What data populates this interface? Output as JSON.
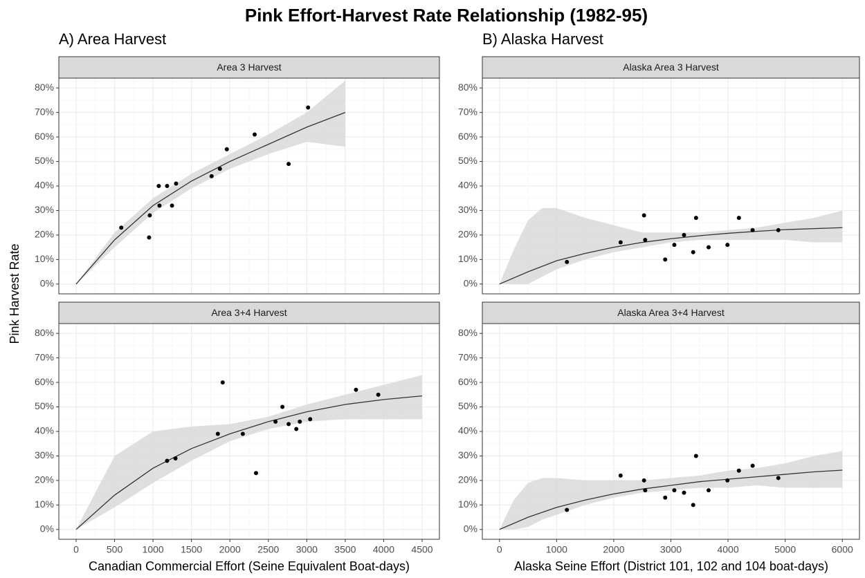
{
  "title": "Pink Effort-Harvest Rate Relationship (1982-95)",
  "y_label": "Pink Harvest Rate",
  "groups": [
    {
      "title": "A) Area Harvest",
      "x_label": "Canadian Commercial Effort (Seine Equivalent Boat-days)"
    },
    {
      "title": "B) Alaska Harvest",
      "x_label": "Alaska Seine Effort (District 101, 102 and 104 boat-days)"
    }
  ],
  "chart_data": [
    {
      "type": "scatter",
      "title": "Area 3 Harvest",
      "x": [
        587,
        958,
        949,
        1075,
        1084,
        1183,
        1247,
        1300,
        1762,
        1870,
        1960,
        2322,
        2764,
        3017
      ],
      "values": [
        23,
        28,
        19,
        40,
        32,
        40,
        32,
        41,
        44,
        47,
        55,
        61,
        49,
        72
      ],
      "fit": {
        "x": [
          0,
          500,
          1000,
          1500,
          2000,
          2500,
          3000,
          3500
        ],
        "values": [
          0,
          18,
          32,
          42,
          50,
          57,
          64,
          70
        ]
      },
      "band": {
        "x": [
          0,
          500,
          1000,
          1500,
          2000,
          2500,
          3000,
          3500
        ],
        "lower": [
          0,
          15,
          29,
          39,
          47,
          53,
          58,
          56
        ],
        "upper": [
          0,
          21,
          35,
          45,
          53,
          61,
          70,
          83
        ]
      },
      "xlim": [
        -225,
        4725
      ],
      "xticks": [
        0,
        500,
        1000,
        1500,
        2000,
        2500,
        3000,
        3500,
        4000,
        4500
      ],
      "show_x_tick_labels": false,
      "ylim": [
        -4,
        84
      ],
      "yticks": [
        {
          "value": 0,
          "label": "0%"
        },
        {
          "value": 10,
          "label": "10%"
        },
        {
          "value": 20,
          "label": "20%"
        },
        {
          "value": 30,
          "label": "30%"
        },
        {
          "value": 40,
          "label": "40%"
        },
        {
          "value": 50,
          "label": "50%"
        },
        {
          "value": 60,
          "label": "60%"
        },
        {
          "value": 70,
          "label": "70%"
        },
        {
          "value": 80,
          "label": "80%"
        }
      ],
      "grid": true,
      "color": "#000000"
    },
    {
      "type": "scatter",
      "title": "Area 3+4 Harvest",
      "x": [
        1183,
        1292,
        1843,
        1906,
        2168,
        2340,
        2593,
        2683,
        2764,
        2864,
        2909,
        3044,
        3640,
        3930
      ],
      "values": [
        28,
        29,
        39,
        60,
        39,
        23,
        44,
        50,
        43,
        41,
        44,
        45,
        57,
        55
      ],
      "fit": {
        "x": [
          0,
          500,
          1000,
          1500,
          2000,
          2500,
          3000,
          3500,
          4000,
          4500
        ],
        "values": [
          0,
          14,
          25,
          33,
          39,
          44,
          48,
          51,
          53,
          54.5
        ]
      },
      "band": {
        "x": [
          0,
          500,
          1000,
          1500,
          2000,
          2500,
          3000,
          3500,
          4000,
          4500
        ],
        "lower": [
          0,
          9,
          19,
          28,
          36,
          41,
          44,
          45,
          45,
          45
        ],
        "upper": [
          0,
          30,
          40,
          42,
          43,
          46,
          51,
          55,
          59,
          63
        ]
      },
      "xlim": [
        -225,
        4725
      ],
      "xticks": [
        0,
        500,
        1000,
        1500,
        2000,
        2500,
        3000,
        3500,
        4000,
        4500
      ],
      "show_x_tick_labels": true,
      "ylim": [
        -4,
        84
      ],
      "yticks": [
        {
          "value": 0,
          "label": "0%"
        },
        {
          "value": 10,
          "label": "10%"
        },
        {
          "value": 20,
          "label": "20%"
        },
        {
          "value": 30,
          "label": "30%"
        },
        {
          "value": 40,
          "label": "40%"
        },
        {
          "value": 50,
          "label": "50%"
        },
        {
          "value": 60,
          "label": "60%"
        },
        {
          "value": 70,
          "label": "70%"
        },
        {
          "value": 80,
          "label": "80%"
        }
      ],
      "grid": true,
      "color": "#000000"
    },
    {
      "type": "scatter",
      "title": "Alaska Area 3 Harvest",
      "x": [
        1180,
        2120,
        2530,
        2550,
        2900,
        3060,
        3230,
        3390,
        3440,
        3660,
        3990,
        4190,
        4430,
        4880
      ],
      "values": [
        9,
        17,
        28,
        18,
        10,
        16,
        20,
        13,
        27,
        15,
        16,
        27,
        22,
        22
      ],
      "fit": {
        "x": [
          0,
          500,
          1000,
          1500,
          2000,
          2500,
          3000,
          3500,
          4000,
          4500,
          5000,
          6000
        ],
        "values": [
          0,
          5,
          9.5,
          12.5,
          15,
          17,
          18.5,
          19.7,
          20.7,
          21.5,
          22.2,
          23
        ]
      },
      "band": {
        "x": [
          0,
          250,
          500,
          750,
          1000,
          1500,
          2000,
          2500,
          3000,
          3500,
          4000,
          4500,
          5000,
          5500,
          6000
        ],
        "lower": [
          0,
          0,
          0,
          3,
          6,
          10,
          13,
          15,
          17,
          18,
          18,
          18,
          18,
          17,
          17
        ],
        "upper": [
          0,
          14,
          26,
          31,
          31,
          27,
          24,
          21,
          21,
          21,
          22,
          23,
          25,
          27,
          30
        ]
      },
      "xlim": [
        -300,
        6300
      ],
      "xticks": [
        0,
        1000,
        2000,
        3000,
        4000,
        5000,
        6000
      ],
      "show_x_tick_labels": false,
      "ylim": [
        -4,
        84
      ],
      "yticks": [
        {
          "value": 0,
          "label": "0%"
        },
        {
          "value": 10,
          "label": "10%"
        },
        {
          "value": 20,
          "label": "20%"
        },
        {
          "value": 30,
          "label": "30%"
        },
        {
          "value": 40,
          "label": "40%"
        },
        {
          "value": 50,
          "label": "50%"
        },
        {
          "value": 60,
          "label": "60%"
        },
        {
          "value": 70,
          "label": "70%"
        },
        {
          "value": 80,
          "label": "80%"
        }
      ],
      "grid": true,
      "color": "#000000"
    },
    {
      "type": "scatter",
      "title": "Alaska Area 3+4 Harvest",
      "x": [
        1180,
        2120,
        2530,
        2550,
        2900,
        3060,
        3230,
        3390,
        3440,
        3660,
        3990,
        4190,
        4430,
        4880
      ],
      "values": [
        8,
        22,
        20,
        16,
        13,
        16,
        15,
        10,
        30,
        16,
        20,
        24,
        26,
        21
      ],
      "fit": {
        "x": [
          0,
          500,
          1000,
          1500,
          2000,
          2500,
          3000,
          3500,
          4000,
          4500,
          5000,
          5500,
          6000
        ],
        "values": [
          0,
          5,
          9,
          12,
          14.5,
          16.5,
          18,
          19.5,
          20.5,
          21.5,
          22.5,
          23.5,
          24.2
        ]
      },
      "band": {
        "x": [
          0,
          250,
          500,
          750,
          1000,
          1500,
          2000,
          2500,
          3000,
          3500,
          4000,
          4500,
          5000,
          5500,
          6000
        ],
        "lower": [
          0,
          0,
          1,
          4,
          6,
          10,
          13,
          15,
          16,
          17,
          17,
          18,
          17,
          17,
          17
        ],
        "upper": [
          0,
          12,
          19,
          21,
          21,
          20,
          20,
          20,
          21,
          22,
          24,
          25,
          27,
          30,
          32
        ]
      },
      "xlim": [
        -300,
        6300
      ],
      "xticks": [
        0,
        1000,
        2000,
        3000,
        4000,
        5000,
        6000
      ],
      "show_x_tick_labels": true,
      "ylim": [
        -4,
        84
      ],
      "yticks": [
        {
          "value": 0,
          "label": "0%"
        },
        {
          "value": 10,
          "label": "10%"
        },
        {
          "value": 20,
          "label": "20%"
        },
        {
          "value": 30,
          "label": "30%"
        },
        {
          "value": 40,
          "label": "40%"
        },
        {
          "value": 50,
          "label": "50%"
        },
        {
          "value": 60,
          "label": "60%"
        },
        {
          "value": 70,
          "label": "70%"
        },
        {
          "value": 80,
          "label": "80%"
        }
      ],
      "grid": true,
      "color": "#000000"
    }
  ]
}
